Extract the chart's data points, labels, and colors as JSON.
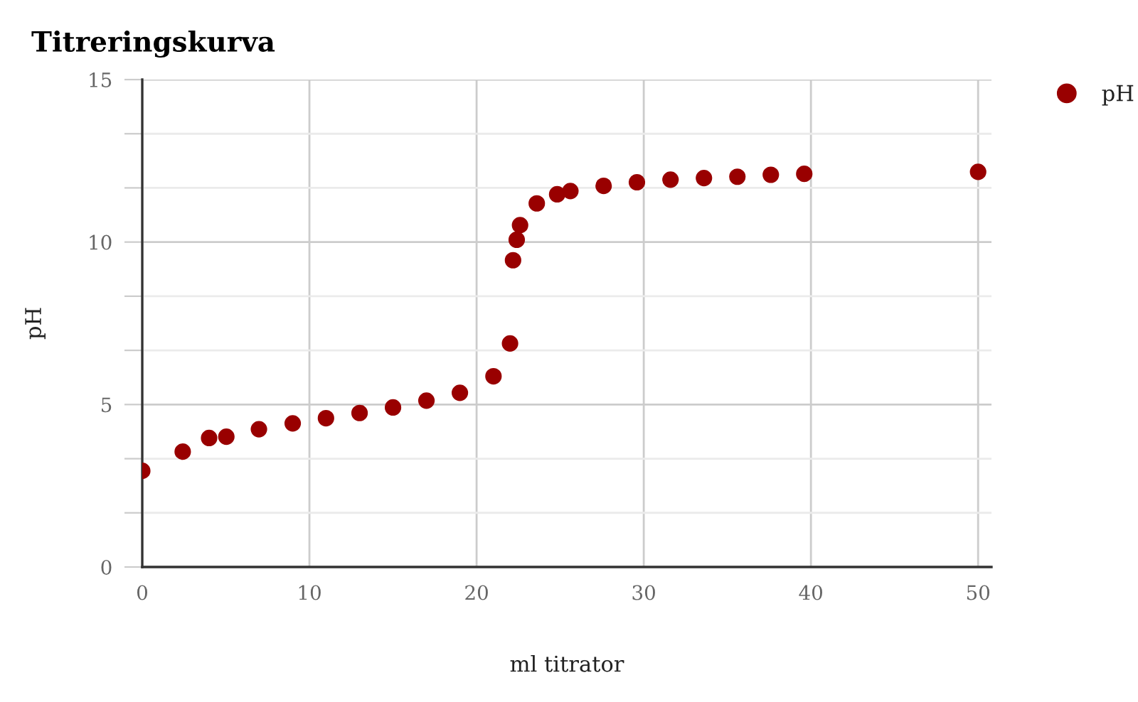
{
  "chart_data": {
    "type": "scatter",
    "title": "Titreringskurva",
    "xlabel": "ml titrator",
    "ylabel": "pH",
    "series": [
      {
        "name": "pH",
        "color": "#990000",
        "x": [
          0,
          2.42,
          4.0,
          5.03,
          6.98,
          9.0,
          10.99,
          13.0,
          15.0,
          17.0,
          19.0,
          21.01,
          22.0,
          22.18,
          22.4,
          22.6,
          23.6,
          24.82,
          25.61,
          27.6,
          29.59,
          31.6,
          33.6,
          35.6,
          37.6,
          39.6,
          50
        ],
        "values": [
          2.96,
          3.55,
          3.97,
          4.01,
          4.24,
          4.42,
          4.58,
          4.74,
          4.91,
          5.12,
          5.36,
          5.87,
          6.88,
          9.44,
          10.07,
          10.52,
          11.19,
          11.47,
          11.57,
          11.73,
          11.84,
          11.92,
          11.97,
          12.01,
          12.07,
          12.1,
          12.16
        ]
      }
    ],
    "xlim": [
      0,
      50.8
    ],
    "xticks": [
      0,
      10,
      20,
      30,
      40,
      50
    ],
    "ylim": [
      0,
      15
    ],
    "yticks": [
      0,
      {
        "value": 1.667,
        "label": null
      },
      {
        "value": 3.333,
        "label": null
      },
      5,
      {
        "value": 6.667,
        "label": null
      },
      {
        "value": 8.333,
        "label": null
      },
      10,
      {
        "value": 11.667,
        "label": null
      },
      {
        "value": 13.333,
        "label": null
      },
      15
    ],
    "grid": true,
    "legend": "top right",
    "marker": "circle"
  }
}
